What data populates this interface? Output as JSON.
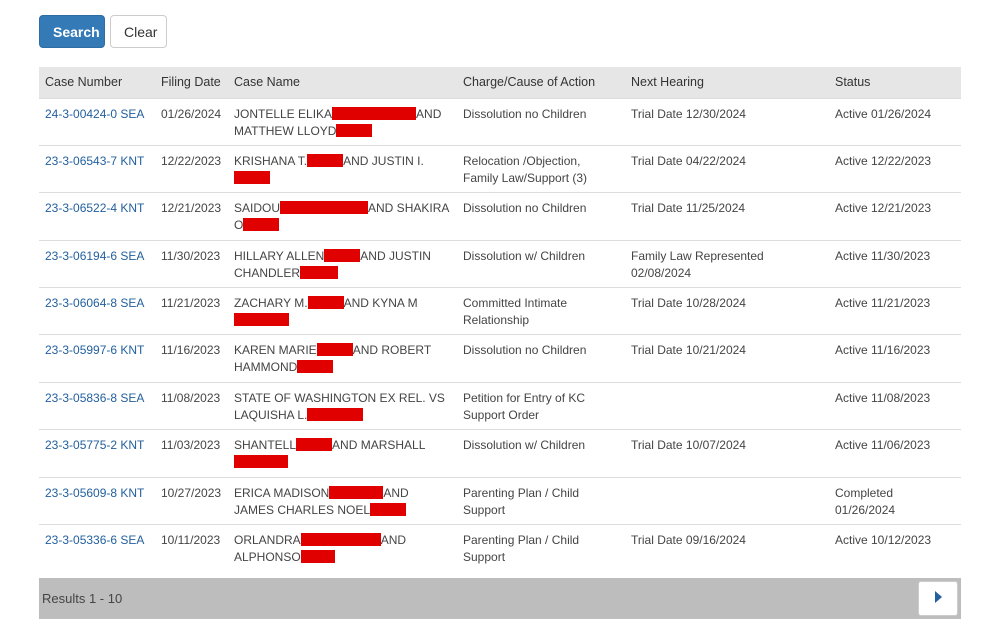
{
  "toolbar": {
    "search_label": "Search",
    "clear_label": "Clear"
  },
  "table": {
    "headers": [
      "Case Number",
      "Filing Date",
      "Case Name",
      "Charge/Cause of Action",
      "Next Hearing",
      "Status"
    ],
    "rows": [
      {
        "case_number": "24-3-00424-0 SEA",
        "filing_date": "01/26/2024",
        "name_a": "JONTELLE ELIKA",
        "name_b": "AND MATTHEW LLOYD",
        "name_c": "",
        "charge": "Dissolution no Children",
        "hearing": "Trial Date 12/30/2024",
        "status": "Active 01/26/2024"
      },
      {
        "case_number": "23-3-06543-7 KNT",
        "filing_date": "12/22/2023",
        "name_a": "KRISHANA T.",
        "name_b": "AND JUSTIN I.",
        "name_c": "",
        "charge": "Relocation /Objection, Family Law/Support (3)",
        "hearing": "Trial Date 04/22/2024",
        "status": "Active 12/22/2023"
      },
      {
        "case_number": "23-3-06522-4 KNT",
        "filing_date": "12/21/2023",
        "name_a": "SAIDOU",
        "name_b": "AND SHAKIRA O",
        "name_c": "",
        "charge": "Dissolution no Children",
        "hearing": "Trial Date 11/25/2024",
        "status": "Active 12/21/2023"
      },
      {
        "case_number": "23-3-06194-6 SEA",
        "filing_date": "11/30/2023",
        "name_a": "HILLARY ALLEN",
        "name_b": "AND JUSTIN CHANDLER",
        "name_c": "",
        "charge": "Dissolution w/ Children",
        "hearing": "Family Law Represented 02/08/2024",
        "status": "Active 11/30/2023"
      },
      {
        "case_number": "23-3-06064-8 SEA",
        "filing_date": "11/21/2023",
        "name_a": "ZACHARY M.",
        "name_b": "AND KYNA M",
        "name_c": "",
        "charge": "Committed Intimate Relationship",
        "hearing": "Trial Date 10/28/2024",
        "status": "Active 11/21/2023"
      },
      {
        "case_number": "23-3-05997-6 KNT",
        "filing_date": "11/16/2023",
        "name_a": "KAREN MARIE",
        "name_b": "AND ROBERT HAMMOND",
        "name_c": "",
        "charge": "Dissolution no Children",
        "hearing": "Trial Date 10/21/2024",
        "status": "Active 11/16/2023"
      },
      {
        "case_number": "23-3-05836-8 SEA",
        "filing_date": "11/08/2023",
        "name_a": "STATE OF WASHINGTON EX REL. VS LAQUISHA L.",
        "name_b": "",
        "name_c": "",
        "charge": "Petition for Entry of KC Support Order",
        "hearing": "",
        "status": "Active 11/08/2023"
      },
      {
        "case_number": "23-3-05775-2 KNT",
        "filing_date": "11/03/2023",
        "name_a": "SHANTELL",
        "name_b": "AND MARSHALL",
        "name_c": "",
        "charge": "Dissolution w/ Children",
        "hearing": "Trial Date 10/07/2024",
        "status": "Active 11/06/2023"
      },
      {
        "case_number": "23-3-05609-8 KNT",
        "filing_date": "10/27/2023",
        "name_a": "ERICA MADISON",
        "name_b": "AND JAMES CHARLES NOEL",
        "name_c": "",
        "charge": "Parenting Plan / Child Support",
        "hearing": "",
        "status": "Completed 01/26/2024"
      },
      {
        "case_number": "23-3-05336-6 SEA",
        "filing_date": "10/11/2023",
        "name_a": "ORLANDRA",
        "name_b": "AND ALPHONSO",
        "name_c": "",
        "charge": "Parenting Plan / Child Support",
        "hearing": "Trial Date 09/16/2024",
        "status": "Active 10/12/2023"
      }
    ]
  },
  "pager": {
    "results_text": "Results 1 - 10",
    "next_icon": "caret-right-icon"
  },
  "colors": {
    "primary": "#337ab7",
    "link": "#23609e",
    "redaction": "#e00000",
    "header_bg": "#e6e6e6",
    "pager_bg": "#bdbdbd"
  }
}
